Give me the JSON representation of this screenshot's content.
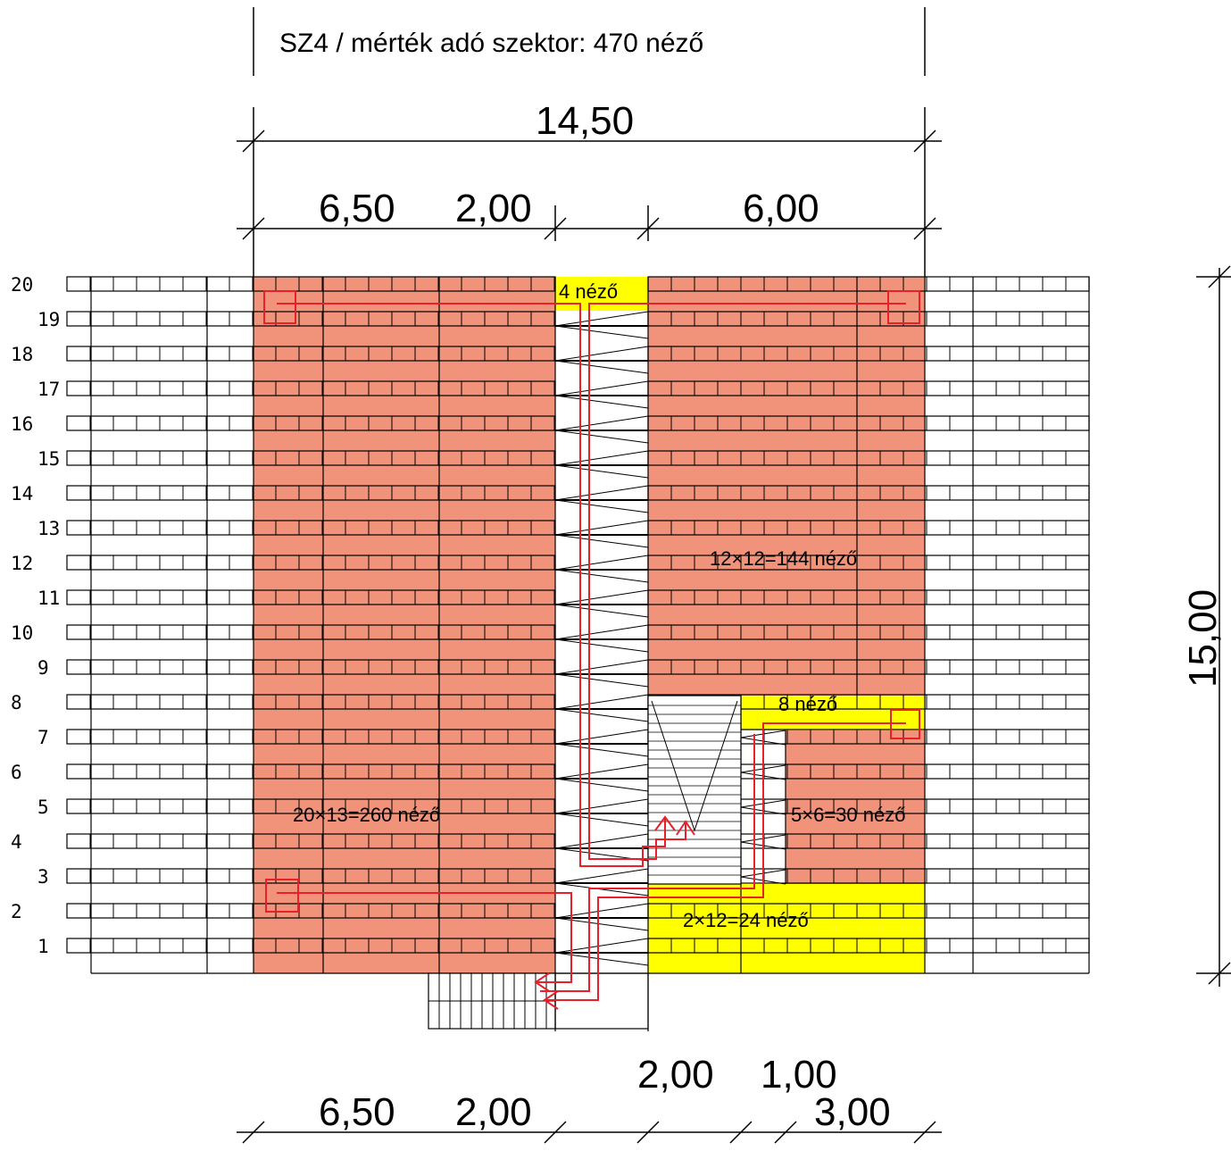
{
  "title": "SZ4 / mérték adó szektor: 470 néző",
  "dimensions": {
    "top_total": "14,50",
    "top_left": "6,50",
    "top_mid": "2,00",
    "top_right": "6,00",
    "bottom_left": "6,50",
    "bottom_mid": "2,00",
    "bottom_a": "2,00",
    "bottom_b": "1,00",
    "bottom_c": "3,00",
    "right_height": "15,00"
  },
  "rows": [
    "1",
    "2",
    "3",
    "4",
    "5",
    "6",
    "7",
    "8",
    "9",
    "10",
    "11",
    "12",
    "13",
    "14",
    "15",
    "16",
    "17",
    "18",
    "19",
    "20"
  ],
  "area_labels": {
    "top_aisle": "4 néző",
    "right_large": "12×12=144 néző",
    "right_small_yellow": "8 néző",
    "left_large": "20×13=260 néző",
    "right_mid": "5×6=30 néző",
    "bottom_yellow": "2×12=24 néző"
  },
  "colors": {
    "salmon": "#f0937a",
    "yellow": "#ffff00",
    "line": "#000000",
    "route": "#e8202a"
  }
}
